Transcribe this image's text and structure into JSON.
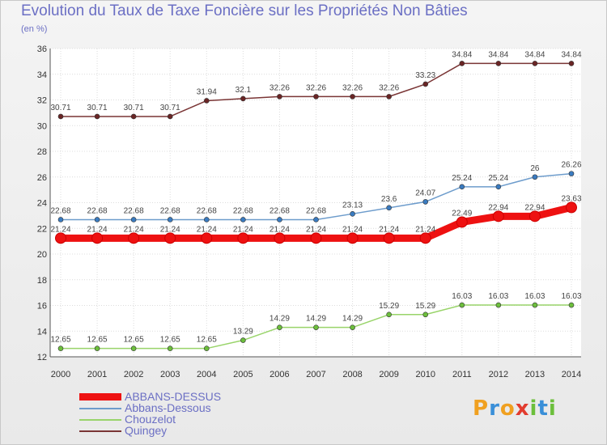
{
  "title": "Evolution du Taux de Taxe Foncière sur les Propriétés Non Bâties",
  "unit_label": "(en %)",
  "brand": {
    "letters": [
      "P",
      "r",
      "o",
      "x",
      "i",
      "t",
      "i"
    ],
    "colors": [
      "#f0a020",
      "#3a8fd8",
      "#f0a020",
      "#e23c2f",
      "#6cbf3c",
      "#3a8fd8",
      "#6cbf3c"
    ]
  },
  "chart_data": {
    "type": "line",
    "title": "Evolution du Taux de Taxe Foncière sur les Propriétés Non Bâties",
    "ylabel": "(en %)",
    "xlabel": "",
    "categories": [
      "2000",
      "2001",
      "2002",
      "2003",
      "2004",
      "2005",
      "2006",
      "2007",
      "2008",
      "2009",
      "2010",
      "2011",
      "2012",
      "2013",
      "2014"
    ],
    "ylim": [
      12,
      36
    ],
    "yticks": [
      12,
      14,
      16,
      18,
      20,
      22,
      24,
      26,
      28,
      30,
      32,
      34,
      36
    ],
    "grid": true,
    "series": [
      {
        "name": "ABBANS-DESSUS",
        "color": "#ee1111",
        "marker": "#ee1111",
        "values": [
          21.24,
          21.24,
          21.24,
          21.24,
          21.24,
          21.24,
          21.24,
          21.24,
          21.24,
          21.24,
          21.24,
          22.49,
          22.94,
          22.94,
          23.63
        ],
        "labels": [
          "21.24",
          "21.24",
          "21.24",
          "21.24",
          "21.24",
          "21.24",
          "21.24",
          "21.24",
          "21.24",
          "21.24",
          "21.24",
          "22.49",
          "22.94",
          "22.94",
          "23.63"
        ]
      },
      {
        "name": "Abbans-Dessous",
        "color": "#6d9ccc",
        "marker": "#3a7bc0",
        "values": [
          22.68,
          22.68,
          22.68,
          22.68,
          22.68,
          22.68,
          22.68,
          22.68,
          23.13,
          23.6,
          24.07,
          25.24,
          25.24,
          26,
          26.26
        ],
        "labels": [
          "22.68",
          "22.68",
          "22.68",
          "22.68",
          "22.68",
          "22.68",
          "22.68",
          "22.68",
          "23.13",
          "23.6",
          "24.07",
          "25.24",
          "25.24",
          "26",
          "26.26"
        ]
      },
      {
        "name": "Chouzelot",
        "color": "#99d46a",
        "marker": "#6cbf3c",
        "values": [
          12.65,
          12.65,
          12.65,
          12.65,
          12.65,
          13.29,
          14.29,
          14.29,
          14.29,
          15.29,
          15.29,
          16.03,
          16.03,
          16.03,
          16.03
        ],
        "labels": [
          "12.65",
          "12.65",
          "12.65",
          "12.65",
          "12.65",
          "13.29",
          "14.29",
          "14.29",
          "14.29",
          "15.29",
          "15.29",
          "16.03",
          "16.03",
          "16.03",
          "16.03"
        ]
      },
      {
        "name": "Quingey",
        "color": "#7a3535",
        "marker": "#6a2525",
        "values": [
          30.71,
          30.71,
          30.71,
          30.71,
          31.94,
          32.1,
          32.26,
          32.26,
          32.26,
          32.26,
          33.23,
          34.84,
          34.84,
          34.84,
          34.84
        ],
        "labels": [
          "30.71",
          "30.71",
          "30.71",
          "30.71",
          "31.94",
          "32.1",
          "32.26",
          "32.26",
          "32.26",
          "32.26",
          "33.23",
          "34.84",
          "34.84",
          "34.84",
          "34.84"
        ]
      }
    ]
  }
}
